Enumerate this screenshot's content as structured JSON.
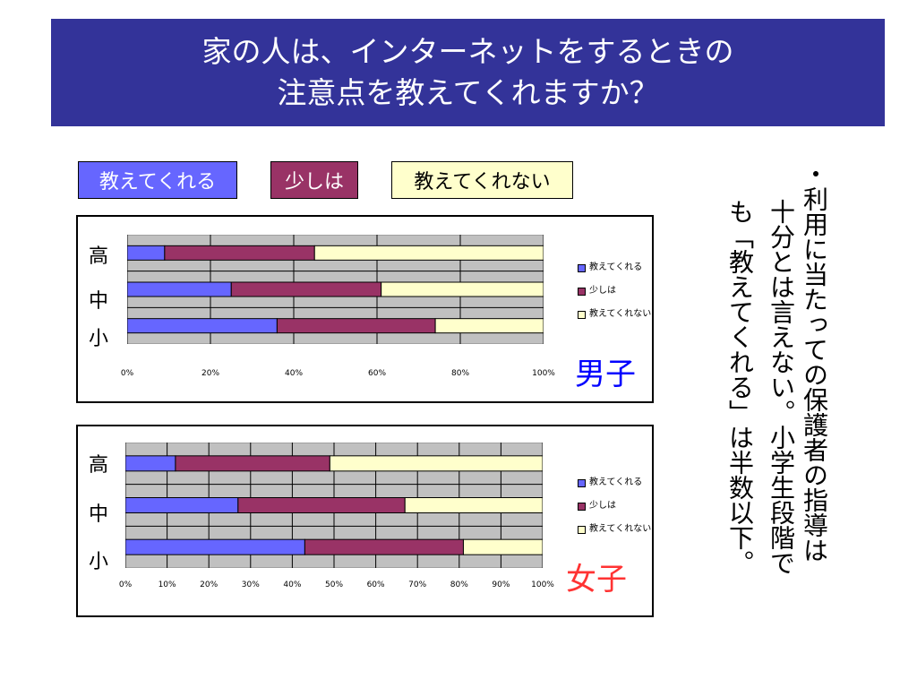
{
  "title": {
    "line1": "家の人は、インターネットをするときの",
    "line2": "注意点を教えてくれますか？"
  },
  "legend_boxes": {
    "teaches": "教えてくれる",
    "somewhat": "少しは",
    "not": "教えてくれない"
  },
  "side_note": {
    "line1": "・利用に当たっての保護者の指導は",
    "line2": "十分とは言えない。小学生段階で",
    "line3": "も「教えてくれる」は半数以下。"
  },
  "colors": {
    "title_bg": "#333399",
    "teaches": "#6666ff",
    "somewhat": "#993366",
    "not": "#ffffcc",
    "plot_bg": "#c0c0c0",
    "boys_label": "#0000ff",
    "girls_label": "#ff3333"
  },
  "chart_data": [
    {
      "type": "bar",
      "orientation": "horizontal",
      "stacked": "percent",
      "label": "男子",
      "categories": [
        "高",
        "中",
        "小"
      ],
      "x_ticks": [
        "0%",
        "20%",
        "40%",
        "60%",
        "80%",
        "100%"
      ],
      "xlim": [
        0,
        100
      ],
      "grid": true,
      "legend_position": "right",
      "series": [
        {
          "name": "教えてくれる",
          "values": [
            9,
            25,
            36
          ]
        },
        {
          "name": "少しは",
          "values": [
            36,
            36,
            38
          ]
        },
        {
          "name": "教えてくれない",
          "values": [
            55,
            39,
            26
          ]
        }
      ]
    },
    {
      "type": "bar",
      "orientation": "horizontal",
      "stacked": "percent",
      "label": "女子",
      "categories": [
        "高",
        "中",
        "小"
      ],
      "x_ticks": [
        "0%",
        "10%",
        "20%",
        "30%",
        "40%",
        "50%",
        "60%",
        "70%",
        "80%",
        "90%",
        "100%"
      ],
      "xlim": [
        0,
        100
      ],
      "grid": true,
      "legend_position": "right",
      "series": [
        {
          "name": "教えてくれる",
          "values": [
            12,
            27,
            43
          ]
        },
        {
          "name": "少しは",
          "values": [
            37,
            40,
            38
          ]
        },
        {
          "name": "教えてくれない",
          "values": [
            51,
            33,
            19
          ]
        }
      ]
    }
  ]
}
